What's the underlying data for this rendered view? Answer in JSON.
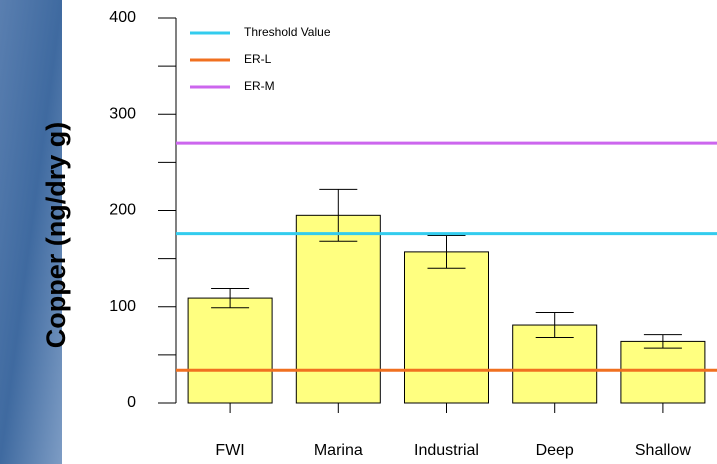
{
  "chart_data": {
    "type": "bar",
    "y_label": "Copper (ng/dry g)",
    "categories": [
      "FWI",
      "Marina",
      "Industrial",
      "Deep",
      "Shallow"
    ],
    "values": [
      109,
      195,
      157,
      81,
      64
    ],
    "errors": [
      10,
      27,
      17,
      13,
      7
    ],
    "color": "#ffff80",
    "ylim": [
      0,
      400
    ],
    "yticks": [
      0,
      100,
      200,
      300,
      400
    ],
    "minor_yticks": [
      50,
      150,
      250,
      350
    ],
    "reference_lines": [
      {
        "name": "Threshold Value",
        "value": 176,
        "color": "#33ccee"
      },
      {
        "name": "ER-L",
        "value": 34,
        "color": "#f07020"
      },
      {
        "name": "ER-M",
        "value": 270,
        "color": "#cc66ee"
      }
    ],
    "legend": "upper left"
  }
}
